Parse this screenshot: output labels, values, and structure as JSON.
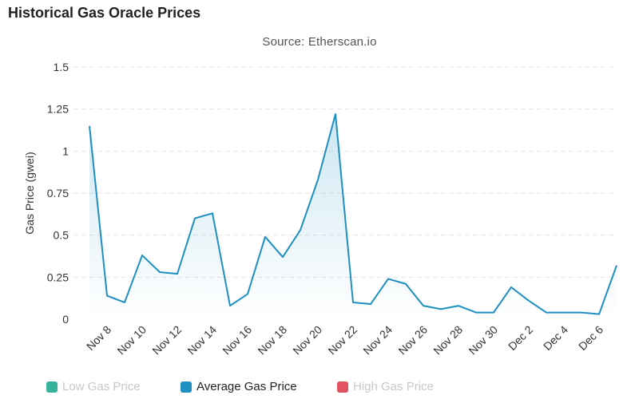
{
  "header": {
    "title": "Historical Gas Oracle Prices",
    "subtitle": "Source: Etherscan.io"
  },
  "colors": {
    "average": "#1d8fc1",
    "low": "#14a58a",
    "high": "#dc3545",
    "grid": "#e5e5e5"
  },
  "legend": [
    {
      "label": "Low Gas Price",
      "color": "#14a58a",
      "active": false
    },
    {
      "label": "Average Gas Price",
      "color": "#1d8fc1",
      "active": true
    },
    {
      "label": "High Gas Price",
      "color": "#dc3545",
      "active": false
    }
  ],
  "chart_data": {
    "type": "line",
    "title": "Historical Gas Oracle Prices",
    "subtitle": "Source: Etherscan.io",
    "xlabel": "",
    "ylabel": "Gas Price (gwei)",
    "ylim": [
      0,
      1.5
    ],
    "yticks": [
      "0",
      "0.25",
      "0.5",
      "0.75",
      "1",
      "1.25",
      "1.5"
    ],
    "ytick_values": [
      0,
      0.25,
      0.5,
      0.75,
      1,
      1.25,
      1.5
    ],
    "xtick_labels": [
      "Nov 8",
      "Nov 10",
      "Nov 12",
      "Nov 14",
      "Nov 16",
      "Nov 18",
      "Nov 20",
      "Nov 22",
      "Nov 24",
      "Nov 26",
      "Nov 28",
      "Nov 30",
      "Dec 2",
      "Dec 4",
      "Dec 6"
    ],
    "grid": true,
    "legend_position": "bottom",
    "x": [
      "Nov 7",
      "Nov 8",
      "Nov 9",
      "Nov 10",
      "Nov 11",
      "Nov 12",
      "Nov 13",
      "Nov 14",
      "Nov 15",
      "Nov 16",
      "Nov 17",
      "Nov 18",
      "Nov 19",
      "Nov 20",
      "Nov 21",
      "Nov 22",
      "Nov 23",
      "Nov 24",
      "Nov 25",
      "Nov 26",
      "Nov 27",
      "Nov 28",
      "Nov 29",
      "Nov 30",
      "Dec 1",
      "Dec 2",
      "Dec 3",
      "Dec 4",
      "Dec 5",
      "Dec 6",
      "Dec 7"
    ],
    "series": [
      {
        "name": "Average Gas Price",
        "values": [
          1.15,
          0.14,
          0.1,
          0.38,
          0.28,
          0.27,
          0.6,
          0.63,
          0.08,
          0.15,
          0.49,
          0.37,
          0.53,
          0.83,
          1.22,
          0.1,
          0.09,
          0.24,
          0.21,
          0.08,
          0.06,
          0.08,
          0.04,
          0.04,
          0.19,
          0.11,
          0.04,
          0.04,
          0.04,
          0.03,
          0.32
        ]
      }
    ]
  }
}
